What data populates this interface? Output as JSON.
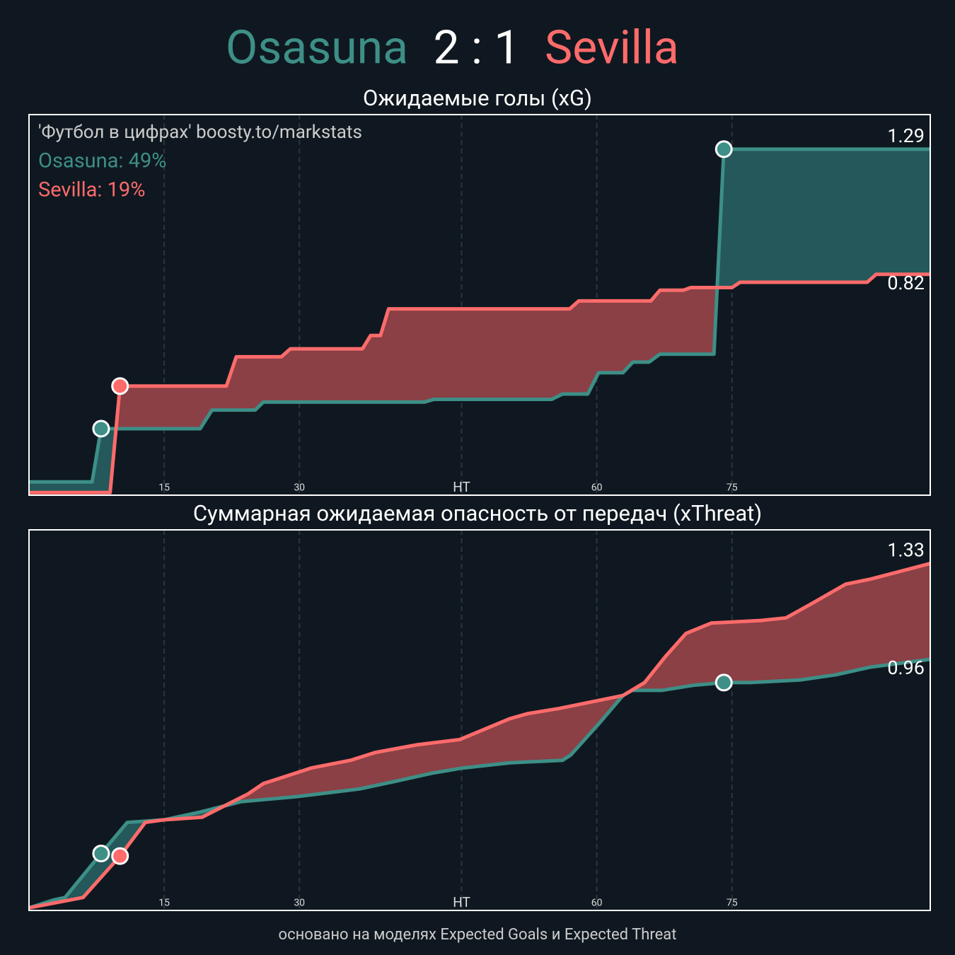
{
  "score": "2 : 1",
  "footer": "основано на моделях Expected Goals и Expected Threat",
  "chart_data": [
    {
      "type": "line",
      "title": "Ожидаемые голы (xG)",
      "annotations": [
        {
          "text": "'Футбол в цифрах' boosty.to/markstats",
          "color": "#cccccc"
        },
        {
          "text": "Osasuna: 49%",
          "color": "#3d8f87"
        },
        {
          "text": "Sevilla: 19%",
          "color": "#ff6b6b"
        }
      ],
      "xlim": [
        0,
        100
      ],
      "xticks": [
        15,
        30,
        {
          "value": 48,
          "label": "HT"
        },
        {
          "value": 63,
          "label": "60"
        },
        {
          "value": 78,
          "label": "75"
        }
      ],
      "ylim": [
        -0.01,
        1.42
      ],
      "grid": true,
      "series": [
        {
          "name": "Osasuna",
          "color": "#3d8f87",
          "fill": "#24585a",
          "x": [
            0,
            7.0,
            8.0,
            19.0,
            20.3,
            25.1,
            26,
            43.9,
            44.9,
            58,
            59.2,
            62,
            63.2,
            65.9,
            67,
            68.8,
            70,
            76,
            77.1,
            90.3,
            91,
            100
          ],
          "values": [
            0.04,
            0.04,
            0.24,
            0.24,
            0.31,
            0.31,
            0.34,
            0.34,
            0.35,
            0.35,
            0.37,
            0.37,
            0.45,
            0.45,
            0.49,
            0.49,
            0.52,
            0.52,
            1.29,
            1.29,
            1.29,
            1.29
          ],
          "goals": [
            8.0,
            77.1
          ]
        },
        {
          "name": "Sevilla",
          "color": "#ff6b6b",
          "fill": "#8a4045",
          "x": [
            0,
            9,
            10.1,
            21.9,
            23,
            28,
            29,
            37,
            37.9,
            39,
            39.9,
            60,
            61,
            69,
            70,
            72.6,
            73.4,
            78,
            78.9,
            93,
            94,
            100
          ],
          "values": [
            0,
            0,
            0.4,
            0.4,
            0.51,
            0.51,
            0.54,
            0.54,
            0.59,
            0.59,
            0.69,
            0.69,
            0.72,
            0.72,
            0.76,
            0.76,
            0.77,
            0.77,
            0.79,
            0.79,
            0.82,
            0.82
          ],
          "goals": [
            10.1
          ]
        }
      ]
    },
    {
      "type": "line",
      "title": "Суммарная ожидаемая опасность от передач (xThreat)",
      "annotations": [],
      "xlim": [
        0,
        100
      ],
      "xticks": [
        15,
        30,
        {
          "value": 48,
          "label": "HT"
        },
        {
          "value": 63,
          "label": "60"
        },
        {
          "value": 78,
          "label": "75"
        }
      ],
      "ylim": [
        -0.01,
        1.46
      ],
      "grid": true,
      "series": [
        {
          "name": "Osasuna",
          "color": "#3d8f87",
          "fill": "#24585a",
          "x": [
            0,
            2.7,
            4,
            8,
            10.9,
            15,
            19,
            23.5,
            29.8,
            36.8,
            40.8,
            44.7,
            48.1,
            53.3,
            59.2,
            60.1,
            63.2,
            65.9,
            66.9,
            70.2,
            73.8,
            77.1,
            80,
            85.5,
            89.5,
            93.4,
            100
          ],
          "values": [
            0,
            0.03,
            0.04,
            0.21,
            0.33,
            0.34,
            0.37,
            0.41,
            0.43,
            0.46,
            0.49,
            0.52,
            0.54,
            0.56,
            0.57,
            0.59,
            0.71,
            0.82,
            0.84,
            0.84,
            0.86,
            0.87,
            0.87,
            0.88,
            0.9,
            0.93,
            0.96
          ],
          "goals": [
            8.0,
            77.1
          ]
        },
        {
          "name": "Sevilla",
          "color": "#ff6b6b",
          "fill": "#8a4045",
          "x": [
            0,
            6,
            10.1,
            12.9,
            15,
            19.2,
            24.3,
            26,
            31.3,
            35.7,
            38.4,
            43.1,
            47.8,
            53.3,
            55.3,
            58.8,
            65.9,
            68.3,
            70.6,
            72.9,
            75.7,
            81.2,
            84,
            87.1,
            90.6,
            93.4,
            100
          ],
          "values": [
            0,
            0.04,
            0.2,
            0.33,
            0.34,
            0.35,
            0.44,
            0.48,
            0.54,
            0.57,
            0.6,
            0.63,
            0.65,
            0.73,
            0.75,
            0.77,
            0.82,
            0.87,
            0.97,
            1.06,
            1.1,
            1.11,
            1.12,
            1.18,
            1.25,
            1.27,
            1.33
          ],
          "goals": [
            10.1
          ]
        }
      ]
    }
  ]
}
